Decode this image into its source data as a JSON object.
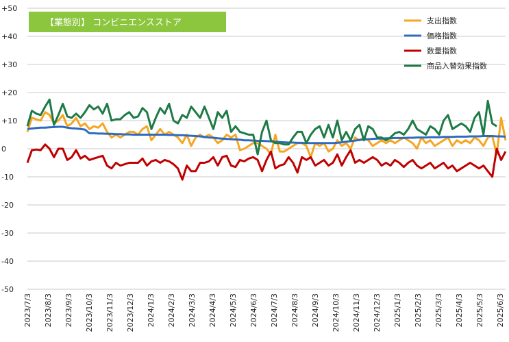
{
  "chart_data": {
    "type": "line",
    "title": "【業態別】 コンビニエンスストア",
    "title_box_color": "#8cc63f",
    "ylim": [
      -50,
      50
    ],
    "y_ticks": [
      50,
      40,
      30,
      20,
      10,
      0,
      -10,
      -20,
      -30,
      -40,
      -50
    ],
    "y_tick_labels": [
      "+50",
      "+40",
      "+30",
      "+20",
      "+10",
      "0",
      "-10",
      "-20",
      "-30",
      "-40",
      "-50"
    ],
    "x_tick_labels": [
      "2023/7/3",
      "2023/8/3",
      "2023/9/3",
      "2023/10/3",
      "2023/11/3",
      "2023/12/3",
      "2024/1/3",
      "2024/2/3",
      "2024/3/3",
      "2024/4/3",
      "2024/5/3",
      "2024/6/3",
      "2024/7/3",
      "2024/8/3",
      "2024/9/3",
      "2024/10/3",
      "2024/11/3",
      "2024/12/3",
      "2025/1/3",
      "2025/2/3",
      "2025/3/3",
      "2025/4/3",
      "2025/5/3",
      "2025/6/3"
    ],
    "grid": true,
    "legend_position": "top-right",
    "series": [
      {
        "name": "支出指数",
        "color": "#f5a623",
        "values": [
          6,
          11,
          10.5,
          10,
          13,
          12,
          9,
          10,
          12,
          8,
          9,
          11,
          8,
          9,
          7,
          8,
          7.5,
          9,
          6,
          4,
          5,
          4,
          5,
          6,
          6,
          5,
          7,
          8,
          3,
          5,
          7,
          5,
          6,
          5,
          4,
          2,
          5,
          1,
          4,
          5,
          4,
          5,
          4,
          2,
          3,
          5,
          4,
          5,
          -0.5,
          0,
          1,
          2,
          2,
          1,
          0,
          -2,
          5,
          -1,
          -1,
          0,
          1,
          2,
          2,
          1,
          -3,
          2,
          1,
          2,
          -1,
          0,
          3,
          1,
          2,
          0,
          4,
          3,
          4,
          3,
          1,
          2,
          3,
          2,
          3,
          2,
          3,
          4,
          3,
          2,
          0,
          4,
          2,
          3,
          1,
          2,
          3,
          4,
          1,
          3,
          2,
          3,
          2,
          4,
          3,
          1,
          4,
          4.5,
          -2,
          11,
          3
        ]
      },
      {
        "name": "価格指数",
        "color": "#2e6bc0",
        "values": [
          7,
          7.2,
          7.4,
          7.5,
          7.5,
          7.6,
          7.7,
          7.8,
          7.8,
          7.5,
          7.3,
          7.2,
          7.0,
          6.8,
          5.5,
          5.5,
          5.4,
          5.4,
          5.3,
          5.3,
          5.2,
          5.2,
          5.1,
          5.1,
          5.0,
          5.0,
          5.0,
          5.0,
          5.0,
          5.0,
          5.0,
          5.0,
          4.9,
          4.9,
          4.8,
          4.8,
          4.7,
          4.6,
          4.5,
          4.4,
          4.2,
          4.0,
          3.9,
          3.7,
          3.6,
          3.5,
          3.4,
          3.3,
          3.2,
          3.0,
          3.0,
          2.9,
          2.8,
          2.8,
          2.7,
          2.6,
          2.5,
          2.4,
          2.3,
          2.2,
          2.2,
          2.1,
          2.1,
          2.0,
          2.0,
          2.0,
          2.0,
          2.0,
          2.0,
          2.0,
          2.1,
          2.3,
          2.5,
          2.7,
          2.9,
          3.1,
          3.3,
          3.4,
          3.5,
          3.6,
          3.6,
          3.7,
          3.7,
          3.8,
          3.8,
          3.8,
          3.9,
          3.9,
          4.0,
          4.0,
          4.0,
          4.1,
          4.1,
          4.1,
          4.2,
          4.2,
          4.2,
          4.3,
          4.3,
          4.3,
          4.4,
          4.4,
          4.4,
          4.5,
          4.5,
          4.5,
          4.4,
          4.4,
          4.3
        ]
      },
      {
        "name": "数量指数",
        "color": "#c00000",
        "values": [
          -5,
          -0.5,
          -0.3,
          -0.5,
          1.5,
          0,
          -3,
          0,
          0,
          -4,
          -3,
          -0.5,
          -3.5,
          -2.5,
          -4,
          -3.5,
          -3,
          -2.5,
          -6,
          -7,
          -5,
          -6,
          -5.5,
          -5,
          -5,
          -5,
          -3.5,
          -6,
          -4.5,
          -4,
          -5,
          -4,
          -4.5,
          -5.5,
          -7,
          -11,
          -6,
          -8,
          -8,
          -5,
          -5,
          -4.5,
          -3,
          -6,
          -3,
          -2.5,
          -6,
          -6.5,
          -4,
          -4.5,
          -3.5,
          -3,
          -4,
          -8,
          -4,
          -1,
          -7,
          -6,
          -5.5,
          -3,
          -5,
          -8.5,
          -3,
          -4,
          -3,
          -6,
          -5,
          -4,
          -6,
          -5,
          -2,
          -6,
          -3,
          -0.5,
          -5,
          -4,
          -5,
          -4,
          -3,
          -4,
          -6,
          -5,
          -6,
          -4,
          -5,
          -6.5,
          -5,
          -4,
          -6,
          -7,
          -6,
          -5,
          -7,
          -6,
          -5,
          -7,
          -6,
          -8,
          -7,
          -6,
          -5,
          -6,
          -7,
          -6,
          -8,
          -10,
          0,
          -4,
          -1
        ]
      },
      {
        "name": "商品入替効果指数",
        "color": "#1e7a46",
        "values": [
          8,
          13.5,
          12.5,
          12,
          15,
          17.5,
          8.5,
          12,
          16,
          11.5,
          11,
          12.5,
          11,
          13,
          15.5,
          14,
          15,
          12.5,
          16,
          10,
          10.5,
          10.5,
          12,
          13,
          11,
          11.5,
          14.5,
          13,
          7,
          11,
          14.5,
          12.5,
          16,
          10,
          9,
          12,
          11,
          15,
          13,
          11,
          15,
          11,
          7,
          13,
          11,
          13.5,
          6,
          8,
          6,
          5.5,
          5,
          5,
          -2,
          6,
          10,
          3,
          2,
          2,
          1.5,
          1.5,
          4,
          6,
          6,
          2,
          5,
          7,
          8,
          4,
          8.5,
          4,
          10,
          3,
          6,
          3,
          7,
          8.5,
          3,
          8,
          7,
          4,
          4,
          3,
          4,
          5.5,
          6,
          5,
          7,
          10,
          7,
          6,
          5,
          8,
          7,
          5,
          10,
          12,
          7,
          8,
          9,
          8,
          6,
          11,
          13,
          5,
          17,
          9,
          8
        ]
      }
    ]
  }
}
